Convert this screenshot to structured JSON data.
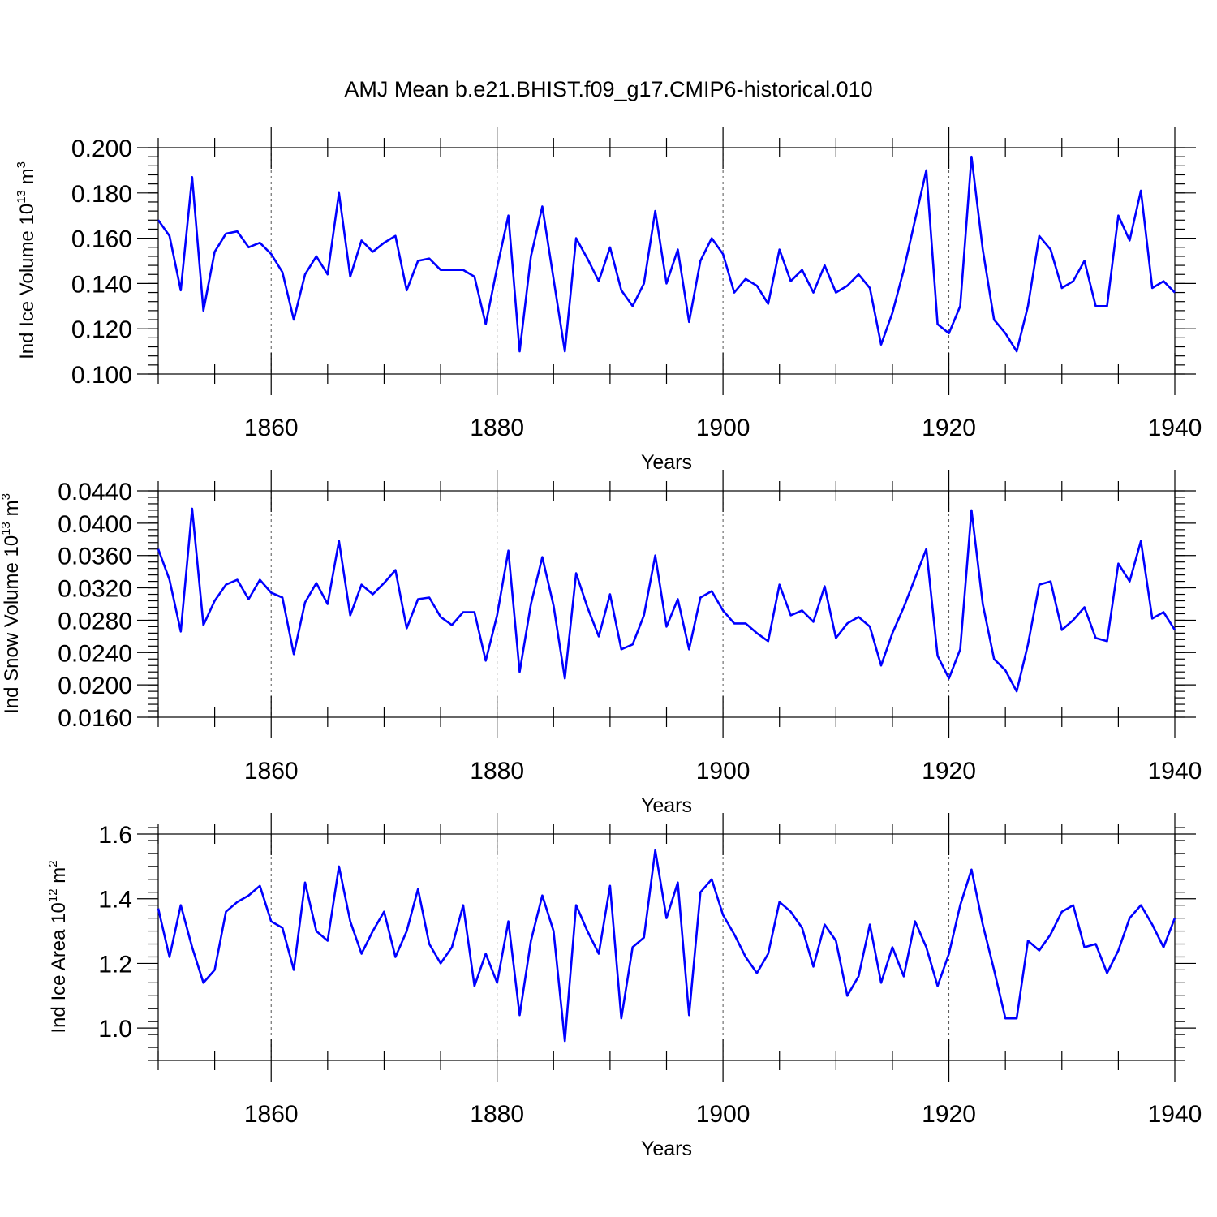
{
  "chart_data": {
    "type": "line",
    "title": "AMJ Mean b.e21.BHIST.f09_g17.CMIP6-historical.010",
    "x_start": 1850,
    "x_end": 1940,
    "xlim": [
      1850,
      1940
    ],
    "xticks": [
      1860,
      1880,
      1900,
      1920,
      1940
    ],
    "xlabel": "Years",
    "panels": [
      {
        "id": "ice-volume",
        "ylabel_main": "Ind Ice Volume 10",
        "ylabel_exp": "13",
        "ylabel_unit": " m",
        "ylabel_unit_exp": "3",
        "ylim": [
          0.1,
          0.2
        ],
        "yticks": [
          "0.100",
          "0.120",
          "0.140",
          "0.160",
          "0.180",
          "0.200"
        ],
        "ytick_values": [
          0.1,
          0.12,
          0.14,
          0.16,
          0.18,
          0.2
        ],
        "series_name": "Ind Ice Volume",
        "values": [
          0.168,
          0.161,
          0.137,
          0.187,
          0.128,
          0.154,
          0.162,
          0.163,
          0.156,
          0.158,
          0.153,
          0.145,
          0.124,
          0.144,
          0.152,
          0.144,
          0.18,
          0.143,
          0.159,
          0.154,
          0.158,
          0.161,
          0.137,
          0.15,
          0.151,
          0.146,
          0.146,
          0.146,
          0.143,
          0.122,
          0.147,
          0.17,
          0.11,
          0.152,
          0.174,
          0.142,
          0.11,
          0.16,
          0.151,
          0.141,
          0.156,
          0.137,
          0.13,
          0.14,
          0.172,
          0.14,
          0.155,
          0.123,
          0.15,
          0.16,
          0.153,
          0.136,
          0.142,
          0.139,
          0.131,
          0.155,
          0.141,
          0.146,
          0.136,
          0.148,
          0.136,
          0.139,
          0.144,
          0.138,
          0.113,
          0.127,
          0.146,
          0.168,
          0.19,
          0.122,
          0.118,
          0.13,
          0.196,
          0.155,
          0.124,
          0.118,
          0.11,
          0.13,
          0.161,
          0.155,
          0.138,
          0.141,
          0.15,
          0.13,
          0.13,
          0.17,
          0.159,
          0.181,
          0.138,
          0.141,
          0.136
        ]
      },
      {
        "id": "snow-volume",
        "ylabel_main": "Ind Snow Volume 10",
        "ylabel_exp": "13",
        "ylabel_unit": " m",
        "ylabel_unit_exp": "3",
        "ylim": [
          0.016,
          0.044
        ],
        "yticks": [
          "0.0160",
          "0.0200",
          "0.0240",
          "0.0280",
          "0.0320",
          "0.0360",
          "0.0400",
          "0.0440"
        ],
        "ytick_values": [
          0.016,
          0.02,
          0.024,
          0.028,
          0.032,
          0.036,
          0.04,
          0.044
        ],
        "series_name": "Ind Snow Volume",
        "values": [
          0.0368,
          0.033,
          0.0266,
          0.0418,
          0.0274,
          0.0304,
          0.0324,
          0.033,
          0.0306,
          0.033,
          0.0314,
          0.0308,
          0.0238,
          0.0302,
          0.0326,
          0.03,
          0.0378,
          0.0286,
          0.0324,
          0.0312,
          0.0326,
          0.0342,
          0.027,
          0.0306,
          0.0308,
          0.0284,
          0.0274,
          0.029,
          0.029,
          0.023,
          0.0286,
          0.0366,
          0.0216,
          0.03,
          0.0358,
          0.0298,
          0.0208,
          0.0338,
          0.0296,
          0.026,
          0.0312,
          0.0244,
          0.025,
          0.0286,
          0.036,
          0.0272,
          0.0306,
          0.0244,
          0.0308,
          0.0316,
          0.0292,
          0.0276,
          0.0276,
          0.0264,
          0.0254,
          0.0324,
          0.0286,
          0.0292,
          0.0278,
          0.0322,
          0.0258,
          0.0276,
          0.0284,
          0.0272,
          0.0224,
          0.0264,
          0.0296,
          0.0332,
          0.0368,
          0.0236,
          0.0208,
          0.0244,
          0.0416,
          0.03,
          0.0232,
          0.0218,
          0.0192,
          0.025,
          0.0324,
          0.0328,
          0.0268,
          0.028,
          0.0296,
          0.0258,
          0.0254,
          0.035,
          0.0328,
          0.0378,
          0.0282,
          0.029,
          0.0268
        ]
      },
      {
        "id": "ice-area",
        "ylabel_main": "Ind Ice Area 10",
        "ylabel_exp": "12",
        "ylabel_unit": " m",
        "ylabel_unit_exp": "2",
        "ylim": [
          0.9,
          1.6
        ],
        "yticks": [
          "1.0",
          "1.2",
          "1.4",
          "1.6"
        ],
        "ytick_values": [
          1.0,
          1.2,
          1.4,
          1.6
        ],
        "series_name": "Ind Ice Area",
        "values": [
          1.37,
          1.22,
          1.38,
          1.25,
          1.14,
          1.18,
          1.36,
          1.39,
          1.41,
          1.44,
          1.33,
          1.31,
          1.18,
          1.45,
          1.3,
          1.27,
          1.5,
          1.33,
          1.23,
          1.3,
          1.36,
          1.22,
          1.3,
          1.43,
          1.26,
          1.2,
          1.25,
          1.38,
          1.13,
          1.23,
          1.14,
          1.33,
          1.04,
          1.27,
          1.41,
          1.3,
          0.96,
          1.38,
          1.3,
          1.23,
          1.44,
          1.03,
          1.25,
          1.28,
          1.55,
          1.34,
          1.45,
          1.04,
          1.42,
          1.46,
          1.35,
          1.29,
          1.22,
          1.17,
          1.23,
          1.39,
          1.36,
          1.31,
          1.19,
          1.32,
          1.27,
          1.1,
          1.16,
          1.32,
          1.14,
          1.25,
          1.16,
          1.33,
          1.25,
          1.13,
          1.23,
          1.38,
          1.49,
          1.32,
          1.18,
          1.03,
          1.03,
          1.27,
          1.24,
          1.29,
          1.36,
          1.38,
          1.25,
          1.26,
          1.17,
          1.24,
          1.34,
          1.38,
          1.32,
          1.25,
          1.34
        ]
      }
    ],
    "line_color": "#0000ff",
    "grid": "dashed vertical at x ticks"
  }
}
